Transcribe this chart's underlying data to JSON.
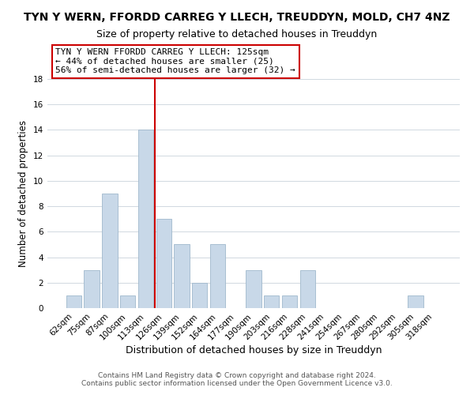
{
  "title": "TYN Y WERN, FFORDD CARREG Y LLECH, TREUDDYN, MOLD, CH7 4NZ",
  "subtitle": "Size of property relative to detached houses in Treuddyn",
  "xlabel": "Distribution of detached houses by size in Treuddyn",
  "ylabel": "Number of detached properties",
  "footer_line1": "Contains HM Land Registry data © Crown copyright and database right 2024.",
  "footer_line2": "Contains public sector information licensed under the Open Government Licence v3.0.",
  "bin_labels": [
    "62sqm",
    "75sqm",
    "87sqm",
    "100sqm",
    "113sqm",
    "126sqm",
    "139sqm",
    "152sqm",
    "164sqm",
    "177sqm",
    "190sqm",
    "203sqm",
    "216sqm",
    "228sqm",
    "241sqm",
    "254sqm",
    "267sqm",
    "280sqm",
    "292sqm",
    "305sqm",
    "318sqm"
  ],
  "bar_heights": [
    1,
    3,
    9,
    1,
    14,
    7,
    5,
    2,
    5,
    0,
    3,
    1,
    1,
    3,
    0,
    0,
    0,
    0,
    0,
    1,
    0
  ],
  "bar_color": "#c8d8e8",
  "bar_edge_color": "#a0b8cc",
  "vline_x_index": 5,
  "vline_color": "#cc0000",
  "annotation_title": "TYN Y WERN FFORDD CARREG Y LLECH: 125sqm",
  "annotation_line1": "← 44% of detached houses are smaller (25)",
  "annotation_line2": "56% of semi-detached houses are larger (32) →",
  "annotation_box_color": "#ffffff",
  "annotation_box_edge_color": "#cc0000",
  "ylim": [
    0,
    18
  ],
  "yticks": [
    0,
    2,
    4,
    6,
    8,
    10,
    12,
    14,
    16,
    18
  ],
  "title_fontsize": 10,
  "subtitle_fontsize": 9,
  "xlabel_fontsize": 9,
  "ylabel_fontsize": 8.5,
  "annotation_fontsize": 8,
  "footer_fontsize": 6.5,
  "tick_fontsize": 7.5,
  "background_color": "#ffffff",
  "grid_color": "#d0d8e0"
}
